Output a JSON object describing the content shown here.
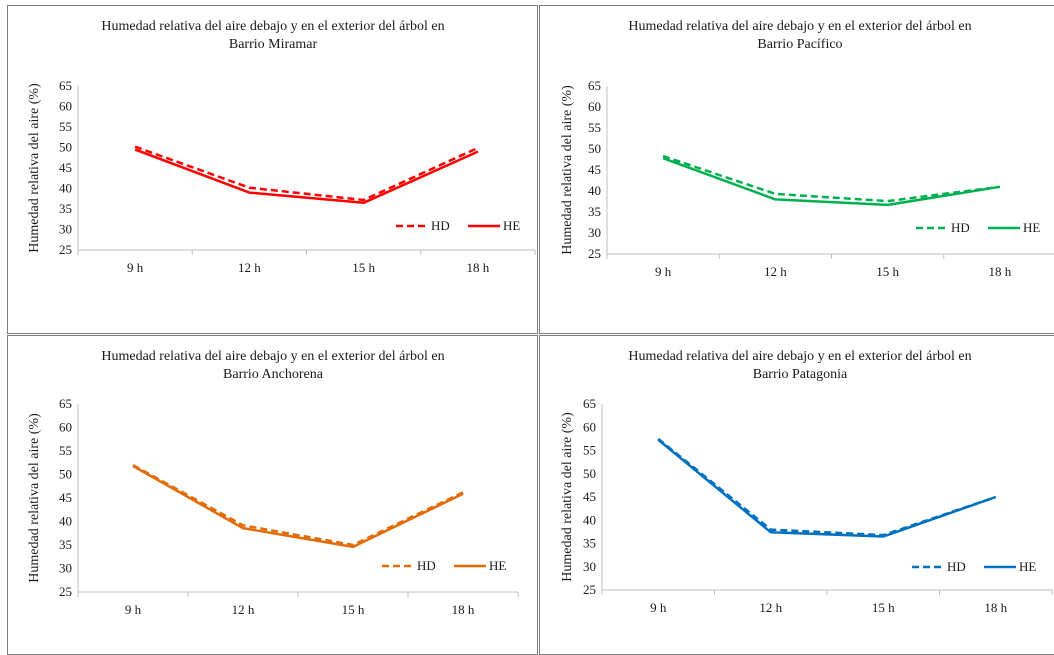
{
  "charts": [
    {
      "title_line1": "Humedad relativa del aire debajo y en el exterior del árbol en",
      "title_line2": "Barrio Miramar"
    },
    {
      "title_line1": "Humedad relativa del aire debajo y en el exterior del árbol en",
      "title_line2": "Barrio Pacífico"
    },
    {
      "title_line1": "Humedad relativa del aire debajo y en el exterior del árbol en",
      "title_line2": "Barrio Anchorena"
    },
    {
      "title_line1": "Humedad relativa del aire debajo y en el exterior del árbol en",
      "title_line2": "Barrio Patagonia"
    }
  ],
  "chart_data": [
    {
      "type": "line",
      "title": "Humedad relativa del aire debajo y en el exterior del árbol en Barrio Miramar",
      "ylabel": "Humedad relativa del aire (%)",
      "xlabel": "",
      "categories": [
        "9 h",
        "12 h",
        "15 h",
        "18 h"
      ],
      "ylim": [
        25,
        65
      ],
      "yticks": [
        25,
        30,
        35,
        40,
        45,
        50,
        55,
        60,
        65
      ],
      "legend_position": "right",
      "grid": false,
      "color": "#ff0000",
      "series": [
        {
          "name": "HD",
          "style": "dashed",
          "values": [
            50.2,
            40.2,
            37.2,
            49.9
          ]
        },
        {
          "name": "HE",
          "style": "solid",
          "values": [
            49.5,
            39.0,
            36.5,
            49.0
          ]
        }
      ]
    },
    {
      "type": "line",
      "title": "Humedad relativa del aire debajo y en el exterior del árbol en Barrio Pacífico",
      "ylabel": "Humedad relativa del aire (%)",
      "xlabel": "",
      "categories": [
        "9 h",
        "12 h",
        "15 h",
        "18 h"
      ],
      "ylim": [
        25,
        65
      ],
      "yticks": [
        25,
        30,
        35,
        40,
        45,
        50,
        55,
        60,
        65
      ],
      "legend_position": "bottom-right",
      "grid": false,
      "color": "#00b050",
      "series": [
        {
          "name": "HD",
          "style": "dashed",
          "values": [
            48.3,
            39.3,
            37.6,
            41.0
          ]
        },
        {
          "name": "HE",
          "style": "solid",
          "values": [
            47.8,
            38.0,
            36.7,
            41.0
          ]
        }
      ]
    },
    {
      "type": "line",
      "title": "Humedad relativa del aire debajo y en el exterior del árbol en Barrio Anchorena",
      "ylabel": "Humedad relativa del aire (%)",
      "xlabel": "",
      "categories": [
        "9 h",
        "12 h",
        "15 h",
        "18 h"
      ],
      "ylim": [
        25,
        65
      ],
      "yticks": [
        25,
        30,
        35,
        40,
        45,
        50,
        55,
        60,
        65
      ],
      "legend_position": "bottom-right",
      "grid": false,
      "color": "#e36c0a",
      "series": [
        {
          "name": "HD",
          "style": "dashed",
          "values": [
            52.0,
            39.2,
            35.0,
            46.2
          ]
        },
        {
          "name": "HE",
          "style": "solid",
          "values": [
            51.8,
            38.6,
            34.6,
            45.9
          ]
        }
      ]
    },
    {
      "type": "line",
      "title": "Humedad relativa del aire debajo y en el exterior del árbol en Barrio Patagonia",
      "ylabel": "Humedad relativa del aire (%)",
      "xlabel": "",
      "categories": [
        "9 h",
        "12 h",
        "15 h",
        "18 h"
      ],
      "ylim": [
        25,
        65
      ],
      "yticks": [
        25,
        30,
        35,
        40,
        45,
        50,
        55,
        60,
        65
      ],
      "legend_position": "bottom-right",
      "grid": false,
      "color": "#0070c0",
      "series": [
        {
          "name": "HD",
          "style": "dashed",
          "values": [
            57.5,
            38.0,
            36.8,
            45.0
          ]
        },
        {
          "name": "HE",
          "style": "solid",
          "values": [
            57.3,
            37.4,
            36.5,
            45.0
          ]
        }
      ]
    }
  ]
}
